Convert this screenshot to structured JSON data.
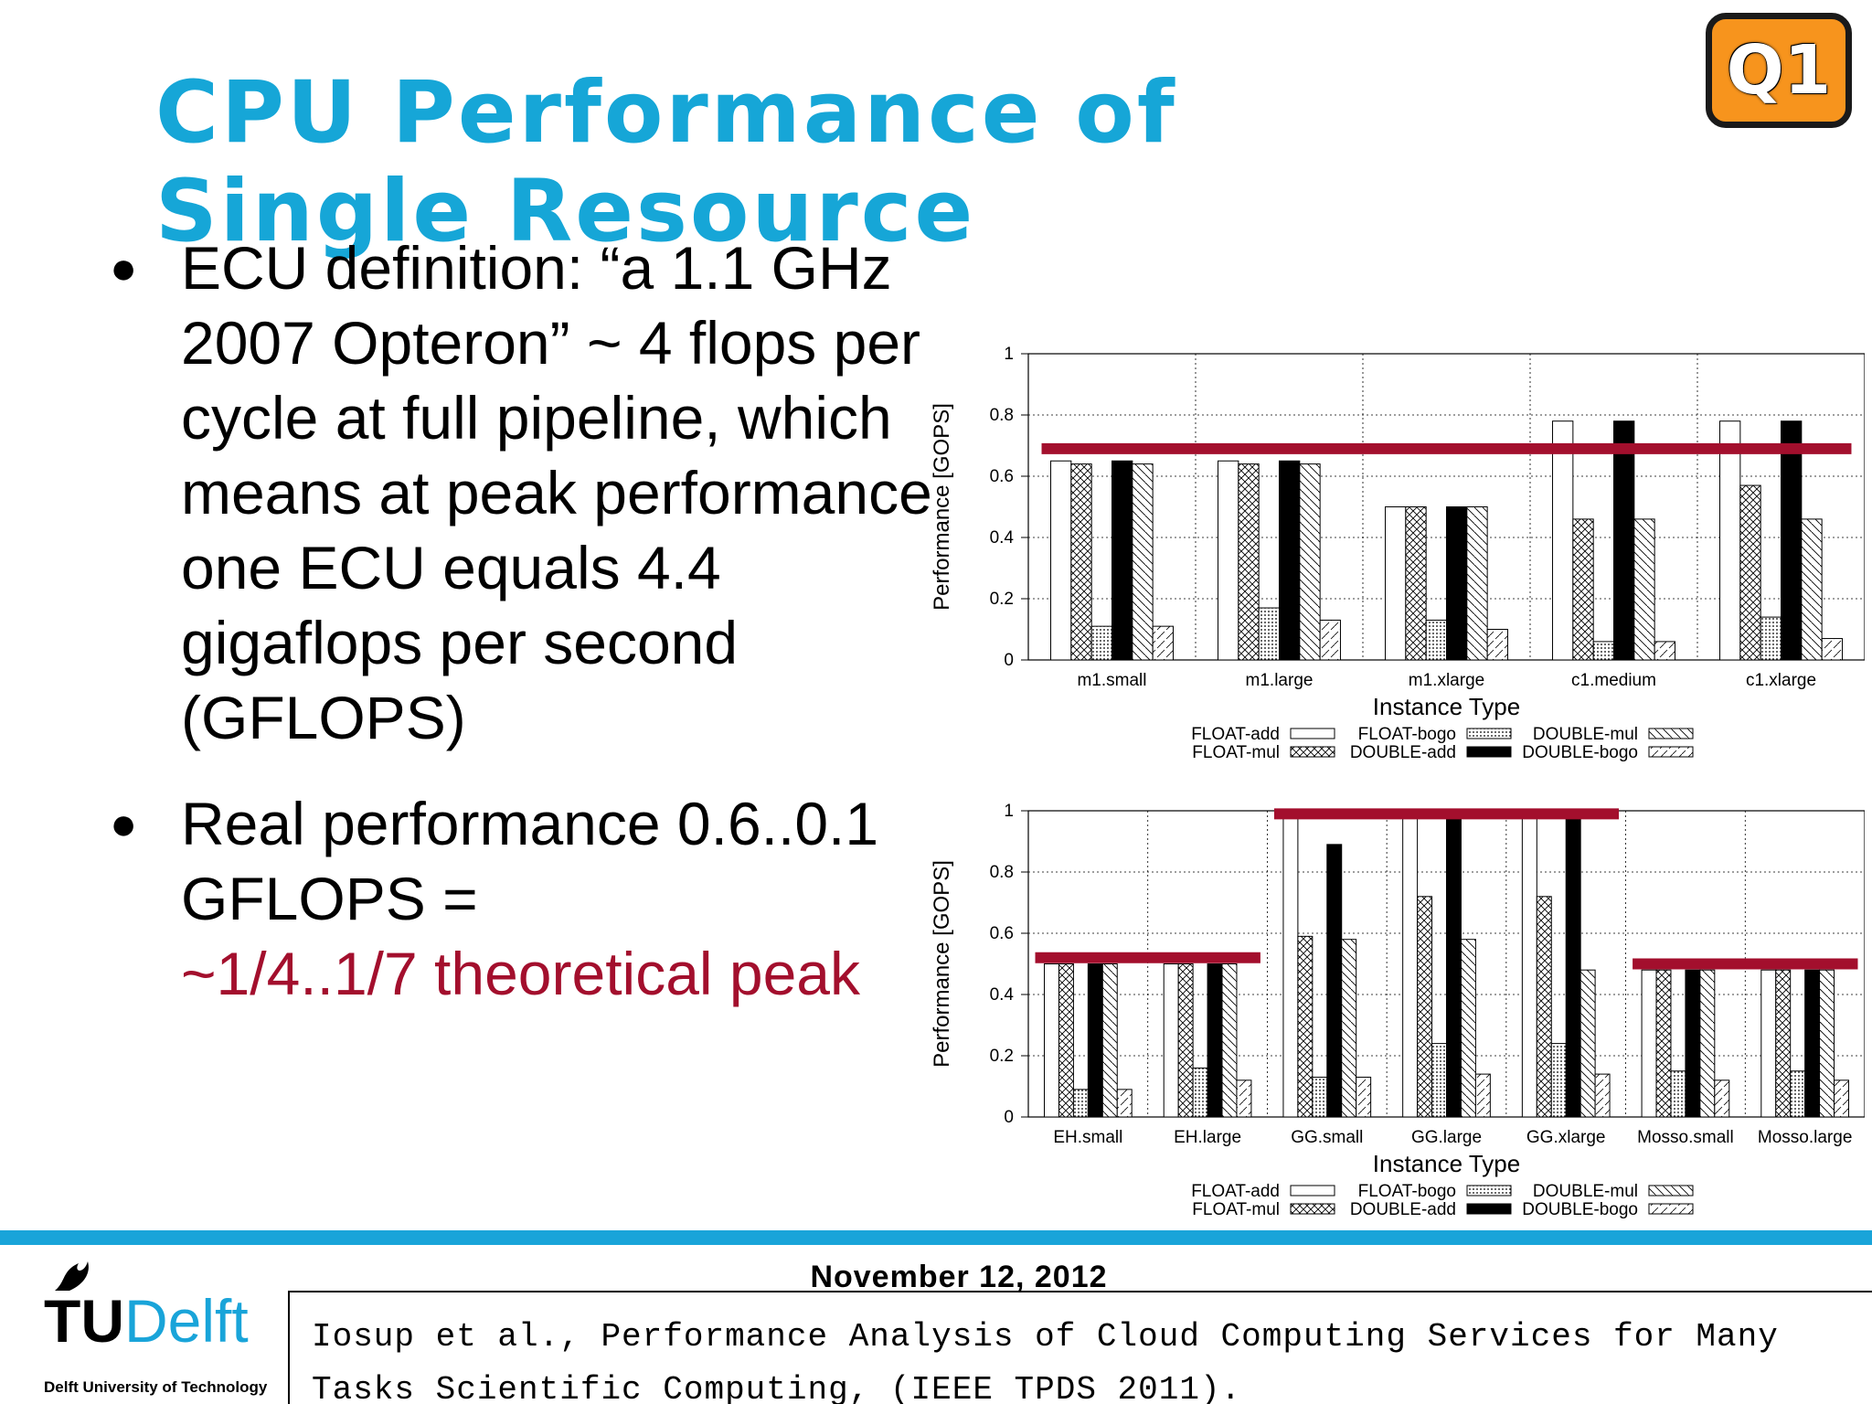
{
  "slide": {
    "title": "CPU Performance of Single Resource",
    "badge": "Q1"
  },
  "bullets": [
    {
      "text": "ECU definition: “a 1.1 GHz 2007 Opteron” ~ 4 flops per cycle at full pipeline, which means at peak performance one ECU equals 4.4 gigaflops per second (GFLOPS)"
    },
    {
      "text": "Real performance 0.6..0.1 GFLOPS =",
      "accent": "~1/4..1/7 theoretical peak"
    }
  ],
  "footer": {
    "date": "November 12, 2012",
    "citation": "Iosup et al., Performance Analysis of Cloud Computing Services for Many Tasks Scientific Computing, (IEEE TPDS 2011).",
    "logo_tu": "TU",
    "logo_delft": "Delft",
    "logo_sub": "Delft University of Technology"
  },
  "colors": {
    "title": "#16a6d7",
    "accent": "#a30f2d",
    "badge": "#f7941d",
    "footer_bar": "#19a4d9",
    "highlight_line": "#a30f2d"
  },
  "chart_data": [
    {
      "type": "bar",
      "xlabel": "Instance Type",
      "ylabel": "Performance [GOPS]",
      "ylim": [
        0,
        1
      ],
      "yticks": [
        "0",
        "0.2",
        "0.4",
        "0.6",
        "0.8",
        "1"
      ],
      "grid": true,
      "legend_position": "bottom",
      "categories": [
        "m1.small",
        "m1.large",
        "m1.xlarge",
        "c1.medium",
        "c1.xlarge"
      ],
      "series": [
        {
          "name": "FLOAT-add",
          "pattern": "white",
          "values": [
            0.65,
            0.65,
            0.5,
            0.78,
            0.78
          ]
        },
        {
          "name": "FLOAT-mul",
          "pattern": "cross",
          "values": [
            0.64,
            0.64,
            0.5,
            0.46,
            0.57
          ]
        },
        {
          "name": "FLOAT-bogo",
          "pattern": "dots",
          "values": [
            0.11,
            0.17,
            0.13,
            0.06,
            0.14
          ]
        },
        {
          "name": "DOUBLE-add",
          "pattern": "black",
          "values": [
            0.65,
            0.65,
            0.5,
            0.78,
            0.78
          ]
        },
        {
          "name": "DOUBLE-mul",
          "pattern": "hatch",
          "values": [
            0.64,
            0.64,
            0.5,
            0.46,
            0.46
          ]
        },
        {
          "name": "DOUBLE-bogo",
          "pattern": "dash",
          "values": [
            0.11,
            0.13,
            0.1,
            0.06,
            0.07
          ]
        }
      ],
      "annotations": [
        {
          "kind": "line",
          "from_category": 0,
          "to_category": 4,
          "y": 0.69
        }
      ]
    },
    {
      "type": "bar",
      "xlabel": "Instance Type",
      "ylabel": "Performance [GOPS]",
      "ylim": [
        0,
        1
      ],
      "yticks": [
        "0",
        "0.2",
        "0.4",
        "0.6",
        "0.8",
        "1"
      ],
      "grid": true,
      "legend_position": "bottom",
      "categories": [
        "EH.small",
        "EH.large",
        "GG.small",
        "GG.large",
        "GG.xlarge",
        "Mosso.small",
        "Mosso.large"
      ],
      "series": [
        {
          "name": "FLOAT-add",
          "pattern": "white",
          "values": [
            0.5,
            0.5,
            1.0,
            1.0,
            1.0,
            0.48,
            0.48
          ]
        },
        {
          "name": "FLOAT-mul",
          "pattern": "cross",
          "values": [
            0.5,
            0.5,
            0.59,
            0.72,
            0.72,
            0.48,
            0.48
          ]
        },
        {
          "name": "FLOAT-bogo",
          "pattern": "dots",
          "values": [
            0.09,
            0.16,
            0.13,
            0.24,
            0.24,
            0.15,
            0.15
          ]
        },
        {
          "name": "DOUBLE-add",
          "pattern": "black",
          "values": [
            0.5,
            0.5,
            0.89,
            0.98,
            0.98,
            0.48,
            0.48
          ]
        },
        {
          "name": "DOUBLE-mul",
          "pattern": "hatch",
          "values": [
            0.5,
            0.5,
            0.58,
            0.58,
            0.48,
            0.48,
            0.48
          ]
        },
        {
          "name": "DOUBLE-bogo",
          "pattern": "dash",
          "values": [
            0.09,
            0.12,
            0.13,
            0.14,
            0.14,
            0.12,
            0.12
          ]
        }
      ],
      "annotations": [
        {
          "kind": "line",
          "from_category": 0,
          "to_category": 1,
          "y": 0.52
        },
        {
          "kind": "line",
          "from_category": 2,
          "to_category": 4,
          "y": 0.99
        },
        {
          "kind": "line",
          "from_category": 5,
          "to_category": 6,
          "y": 0.5
        }
      ]
    }
  ]
}
